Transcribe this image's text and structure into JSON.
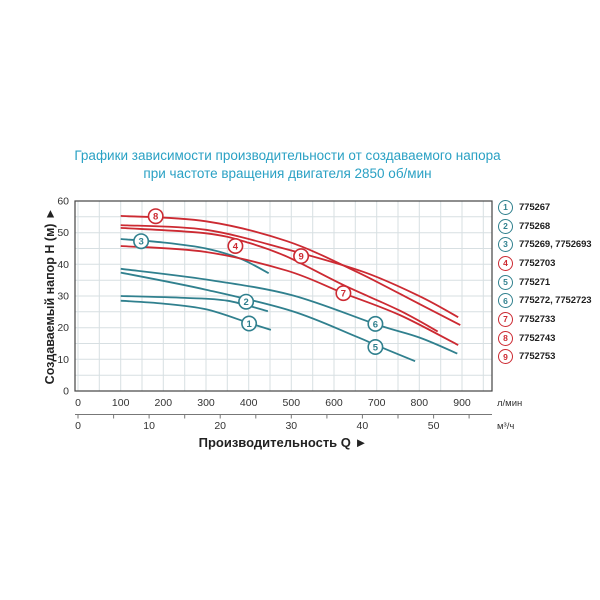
{
  "title": {
    "line1": "Графики зависимости производительности от создаваемого напора",
    "line2": "при частоте вращения двигателя 2850 об/мин"
  },
  "colors": {
    "title_text": "#2aa1c4",
    "curve_teal": "#30808e",
    "curve_red": "#cc2a32",
    "grid": "#d7dfe2",
    "frame": "#444444",
    "tick_text": "#333333",
    "axis_title_text": "#222222"
  },
  "legend": {
    "items": [
      {
        "num": "1",
        "label": "775267",
        "color": "teal"
      },
      {
        "num": "2",
        "label": "775268",
        "color": "teal"
      },
      {
        "num": "3",
        "label": "775269, 7752693",
        "color": "teal"
      },
      {
        "num": "4",
        "label": "7752703",
        "color": "red"
      },
      {
        "num": "5",
        "label": "775271",
        "color": "teal"
      },
      {
        "num": "6",
        "label": "775272, 7752723",
        "color": "teal"
      },
      {
        "num": "7",
        "label": "7752733",
        "color": "red"
      },
      {
        "num": "8",
        "label": "7752743",
        "color": "red"
      },
      {
        "num": "9",
        "label": "7752753",
        "color": "red"
      }
    ]
  },
  "chart_data": {
    "type": "line",
    "title": "Графики зависимости производительности от создаваемого напора при частоте вращения двигателя 2850 об/мин",
    "xlabel": "Производительность Q ►",
    "ylabel": "Создаваемый напор Н (м) ►",
    "x_unit_primary": "л/мин",
    "x_unit_secondary": "м³/ч",
    "xlim": [
      0,
      950
    ],
    "ylim": [
      0,
      60
    ],
    "x_ticks_lmin": [
      0,
      100,
      200,
      300,
      400,
      500,
      600,
      700,
      800,
      900
    ],
    "x_ticks_m3h": [
      0,
      10,
      20,
      30,
      40,
      50
    ],
    "y_ticks": [
      0,
      10,
      20,
      30,
      40,
      50,
      60
    ],
    "grid": {
      "x_step": 50,
      "y_step": 5,
      "visible": true
    },
    "legend_position": "right",
    "series": [
      {
        "id": "1",
        "name": "775267",
        "color": "teal",
        "points": [
          [
            100,
            28.5
          ],
          [
            200,
            27.6
          ],
          [
            300,
            25.8
          ],
          [
            400,
            21.5
          ],
          [
            452,
            19.3
          ]
        ],
        "label_at": [
          401,
          21.3
        ]
      },
      {
        "id": "2",
        "name": "775268",
        "color": "teal",
        "points": [
          [
            100,
            30
          ],
          [
            250,
            29.4
          ],
          [
            350,
            28.5
          ],
          [
            445,
            25.2
          ]
        ],
        "label_at": [
          394,
          28.2
        ]
      },
      {
        "id": "3",
        "name": "775269, 7752693",
        "color": "teal",
        "points": [
          [
            100,
            48
          ],
          [
            200,
            46.9
          ],
          [
            300,
            45
          ],
          [
            380,
            41.8
          ],
          [
            447,
            37.2
          ]
        ],
        "label_at": [
          148,
          47.3
        ]
      },
      {
        "id": "5",
        "name": "775271",
        "color": "teal",
        "points": [
          [
            100,
            37.4
          ],
          [
            300,
            32
          ],
          [
            500,
            25.3
          ],
          [
            650,
            17.3
          ],
          [
            700,
            14.4
          ],
          [
            790,
            9.4
          ]
        ],
        "label_at": [
          697,
          13.9
        ]
      },
      {
        "id": "6",
        "name": "775272, 7752723",
        "color": "teal",
        "points": [
          [
            100,
            38.6
          ],
          [
            300,
            35.2
          ],
          [
            500,
            30.3
          ],
          [
            700,
            21
          ],
          [
            800,
            16.9
          ],
          [
            889,
            11.8
          ]
        ],
        "label_at": [
          697,
          21.2
        ]
      },
      {
        "id": "4",
        "name": "7752703",
        "color": "red",
        "points": [
          [
            100,
            51.5
          ],
          [
            300,
            49.8
          ],
          [
            400,
            46.8
          ],
          [
            490,
            42.4
          ],
          [
            620,
            33.6
          ],
          [
            754,
            25.4
          ],
          [
            843,
            18.8
          ]
        ],
        "label_at": [
          369,
          45.8
        ]
      },
      {
        "id": "7",
        "name": "7752733",
        "color": "red",
        "points": [
          [
            100,
            45.8
          ],
          [
            300,
            43.9
          ],
          [
            490,
            38
          ],
          [
            620,
            31
          ],
          [
            754,
            24
          ],
          [
            891,
            14.5
          ]
        ],
        "label_at": [
          622,
          30.9
        ]
      },
      {
        "id": "8",
        "name": "7752743",
        "color": "red",
        "points": [
          [
            100,
            55.3
          ],
          [
            300,
            53.6
          ],
          [
            490,
            47.3
          ],
          [
            655,
            37.5
          ],
          [
            801,
            27.4
          ],
          [
            896,
            20.8
          ]
        ],
        "label_at": [
          182,
          55.2
        ]
      },
      {
        "id": "9",
        "name": "7752753",
        "color": "red",
        "points": [
          [
            100,
            52.4
          ],
          [
            300,
            50.9
          ],
          [
            490,
            44.7
          ],
          [
            671,
            37.5
          ],
          [
            801,
            29.9
          ],
          [
            891,
            23.3
          ]
        ],
        "label_at": [
          523,
          42.6
        ]
      }
    ]
  }
}
